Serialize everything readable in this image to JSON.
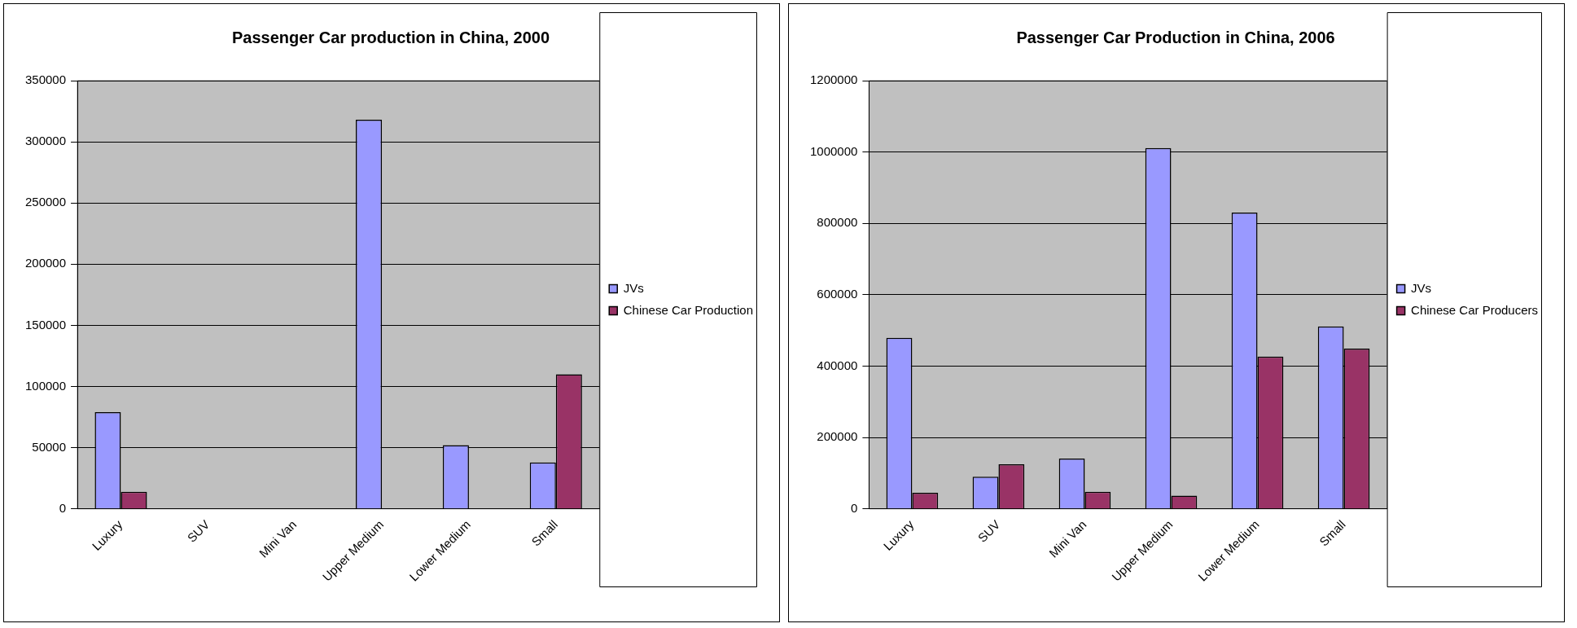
{
  "chart_data": [
    {
      "type": "bar",
      "title": "Passenger Car production in China, 2000",
      "categories": [
        "Luxury",
        "SUV",
        "Mini Van",
        "Upper Medium",
        "Lower Medium",
        "Small"
      ],
      "series": [
        {
          "name": "JVs",
          "color": "#9999ff",
          "values": [
            79000,
            null,
            null,
            318000,
            52000,
            38000
          ]
        },
        {
          "name": "Chinese Car Production",
          "color": "#993366",
          "values": [
            14000,
            null,
            null,
            null,
            null,
            110000
          ]
        }
      ],
      "ylim": [
        0,
        350000
      ],
      "yticks": [
        0,
        50000,
        100000,
        150000,
        200000,
        250000,
        300000,
        350000
      ],
      "grid": "y",
      "legend": "right"
    },
    {
      "type": "bar",
      "title": "Passenger Car Production in China, 2006",
      "categories": [
        "Luxury",
        "SUV",
        "Mini Van",
        "Upper Medium",
        "Lower Medium",
        "Small"
      ],
      "series": [
        {
          "name": "JVs",
          "color": "#9999ff",
          "values": [
            479000,
            90000,
            141000,
            1011000,
            830000,
            511000
          ]
        },
        {
          "name": "Chinese Car Producers",
          "color": "#993366",
          "values": [
            45000,
            125000,
            48000,
            37000,
            427000,
            449000
          ]
        }
      ],
      "ylim": [
        0,
        1200000
      ],
      "yticks": [
        0,
        200000,
        400000,
        600000,
        800000,
        1000000,
        1200000
      ],
      "grid": "y",
      "legend": "right"
    }
  ]
}
